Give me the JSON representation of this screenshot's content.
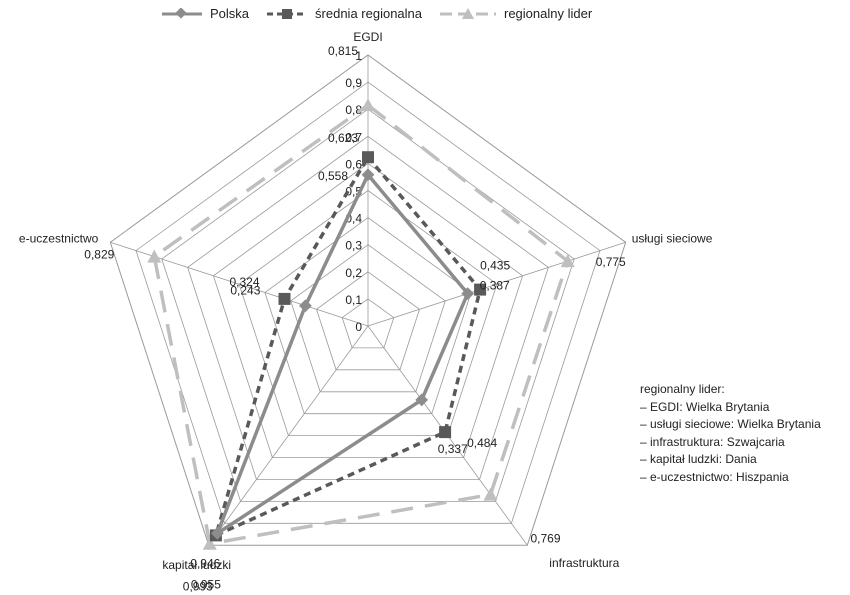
{
  "chart_data": {
    "type": "radar",
    "axes": [
      "EGDI",
      "usługi sieciowe",
      "infrastruktura",
      "kapitał ludzki",
      "e-uczestnictwo"
    ],
    "r_ticks": [
      "0",
      "0,1",
      "0,2",
      "0,3",
      "0,4",
      "0,5",
      "0,6",
      "0,7",
      "0,8",
      "0,9",
      "1"
    ],
    "rlim": [
      0,
      1
    ],
    "grid": true,
    "legend_position": "top",
    "series": [
      {
        "name": "Polska",
        "values": [
          0.558,
          0.387,
          0.337,
          0.946,
          0.243
        ],
        "labels": [
          "0,558",
          "0,387",
          "0,337",
          "0,946",
          "0,243"
        ],
        "color": "#8c8c8c",
        "style": "solid",
        "marker": "diamond"
      },
      {
        "name": "średnia regionalna",
        "values": [
          0.623,
          0.435,
          0.484,
          0.955,
          0.324
        ],
        "labels": [
          "0,623",
          "0,435",
          "0,484",
          "0,955",
          "0,324"
        ],
        "color": "#595959",
        "style": "dashed",
        "marker": "square"
      },
      {
        "name": "regionalny lider",
        "values": [
          0.815,
          0.775,
          0.769,
          0.993,
          0.829
        ],
        "labels": [
          "0,815",
          "0,775",
          "0,769",
          "0,993",
          "0,829"
        ],
        "color": "#bfbfbf",
        "style": "dashed",
        "marker": "triangle"
      }
    ]
  },
  "notes": {
    "title": "regionalny lider:",
    "items": [
      "– EGDI: Wielka Brytania",
      "– usługi sieciowe: Wielka Brytania",
      "– infrastruktura: Szwajcaria",
      "– kapitał ludzki: Dania",
      "– e-uczestnictwo: Hiszpania"
    ]
  }
}
